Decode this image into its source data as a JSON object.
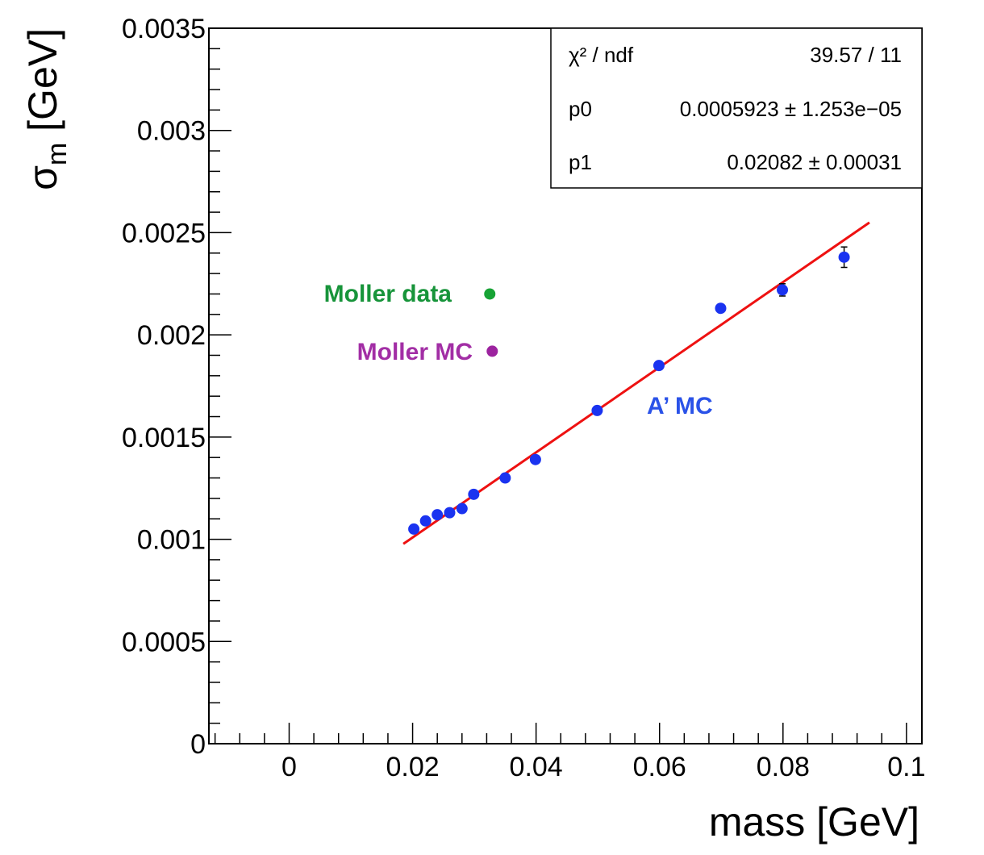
{
  "chart_data": {
    "type": "scatter",
    "xlabel": "mass [GeV]",
    "ylabel": {
      "main": "σ",
      "sub": "m",
      "unit": " [GeV]"
    },
    "xlim": [
      -0.013,
      0.1025
    ],
    "ylim": [
      0,
      0.0035
    ],
    "x_ticks": [
      {
        "value": 0,
        "label": "0"
      },
      {
        "value": 0.02,
        "label": "0.02"
      },
      {
        "value": 0.04,
        "label": "0.04"
      },
      {
        "value": 0.06,
        "label": "0.06"
      },
      {
        "value": 0.08,
        "label": "0.08"
      },
      {
        "value": 0.1,
        "label": "0.1"
      }
    ],
    "y_ticks": [
      {
        "value": 0,
        "label": "0"
      },
      {
        "value": 0.0005,
        "label": "0.0005"
      },
      {
        "value": 0.001,
        "label": "0.001"
      },
      {
        "value": 0.0015,
        "label": "0.0015"
      },
      {
        "value": 0.002,
        "label": "0.002"
      },
      {
        "value": 0.0025,
        "label": "0.0025"
      },
      {
        "value": 0.003,
        "label": "0.003"
      },
      {
        "value": 0.0035,
        "label": "0.0035"
      }
    ],
    "grid": false,
    "series": [
      {
        "name": "A’ MC",
        "color": "#1a33f0",
        "points": [
          {
            "x": 0.0202,
            "y": 0.00105,
            "err": 1.2e-05
          },
          {
            "x": 0.0221,
            "y": 0.00109,
            "err": 1.2e-05
          },
          {
            "x": 0.024,
            "y": 0.00112,
            "err": 1.2e-05
          },
          {
            "x": 0.026,
            "y": 0.00113,
            "err": 1.2e-05
          },
          {
            "x": 0.028,
            "y": 0.00115,
            "err": 1.2e-05
          },
          {
            "x": 0.0299,
            "y": 0.00122,
            "err": 1.2e-05
          },
          {
            "x": 0.035,
            "y": 0.0013,
            "err": 1.3e-05
          },
          {
            "x": 0.0399,
            "y": 0.00139,
            "err": 1.4e-05
          },
          {
            "x": 0.0499,
            "y": 0.00163,
            "err": 1.6e-05
          },
          {
            "x": 0.0599,
            "y": 0.00185,
            "err": 1.8e-05
          },
          {
            "x": 0.0699,
            "y": 0.00213,
            "err": 1.8e-05
          },
          {
            "x": 0.0799,
            "y": 0.00222,
            "err": 3e-05
          },
          {
            "x": 0.0899,
            "y": 0.00238,
            "err": 5e-05
          }
        ]
      },
      {
        "name": "Moller data",
        "color": "#17a335",
        "points": [
          {
            "x": 0.0325,
            "y": 0.0022
          }
        ]
      },
      {
        "name": "Moller MC",
        "color": "#9c239f",
        "points": [
          {
            "x": 0.0329,
            "y": 0.00192
          }
        ]
      }
    ],
    "fit": {
      "color": "#ee1111",
      "p0": 0.0005923,
      "p1": 0.02082,
      "x_range": [
        0.0185,
        0.094
      ]
    },
    "annotations": [
      {
        "text": "Moller data",
        "color": "#17943a"
      },
      {
        "text": "Moller MC",
        "color": "#a22ea5"
      },
      {
        "text": "A’ MC",
        "color": "#2a52e8"
      }
    ],
    "stats_box": [
      {
        "label": "χ² / ndf",
        "value": "39.57 / 11"
      },
      {
        "label": "p0",
        "value": "0.0005923 ± 1.253e−05"
      },
      {
        "label": "p1",
        "value": "0.02082 ± 0.00031"
      }
    ]
  }
}
